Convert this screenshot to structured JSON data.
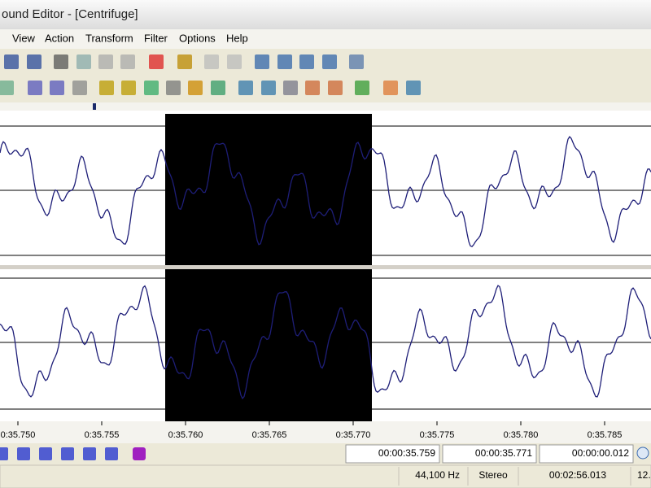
{
  "window": {
    "title": "ound Editor - [Centrifuge]"
  },
  "menu": [
    "View",
    "Action",
    "Transform",
    "Filter",
    "Options",
    "Help"
  ],
  "time_ruler": [
    "0:35.750",
    "0:35.755",
    "0:35.760",
    "0:35.765",
    "0:35.770",
    "0:35.775",
    "0:35.780",
    "0:35.785"
  ],
  "selection": {
    "start": "00:00:35.759",
    "end": "00:00:35.771",
    "length": "00:00:00.012"
  },
  "status": {
    "sample_rate": "44,100 Hz",
    "channels": "Stereo",
    "duration": "00:02:56.013",
    "extra": "12."
  }
}
